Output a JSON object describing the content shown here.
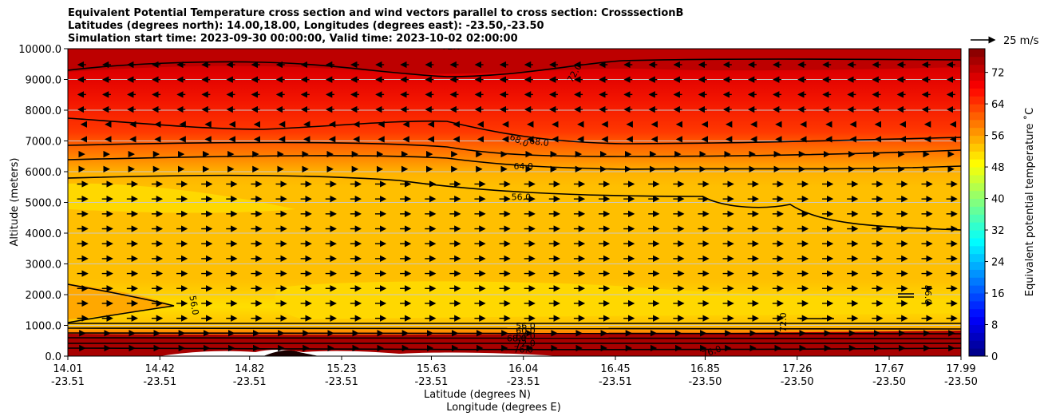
{
  "chart_data": {
    "type": "heatmap",
    "title_lines": [
      "Equivalent Potential Temperature cross section and wind vectors parallel to cross section: CrosssectionB",
      "Latitudes (degrees north): 14.00,18.00, Longitudes (degrees east): -23.50,-23.50",
      "Simulation start time: 2023-09-30 00:00:00, Valid time: 2023-10-02 02:00:00"
    ],
    "xlabel_lat": "Latitude (degrees N)",
    "xlabel_lon": "Longitude (degrees E)",
    "ylabel": "Altitude (meters)",
    "xlim": [
      14.01,
      17.99
    ],
    "ylim": [
      0,
      10000
    ],
    "x_ticks": [
      {
        "lat": "14.01",
        "lon": "-23.51",
        "value": 14.01
      },
      {
        "lat": "14.42",
        "lon": "-23.51",
        "value": 14.42
      },
      {
        "lat": "14.82",
        "lon": "-23.51",
        "value": 14.82
      },
      {
        "lat": "15.23",
        "lon": "-23.51",
        "value": 15.23
      },
      {
        "lat": "15.63",
        "lon": "-23.51",
        "value": 15.63
      },
      {
        "lat": "16.04",
        "lon": "-23.51",
        "value": 16.04
      },
      {
        "lat": "16.45",
        "lon": "-23.51",
        "value": 16.45
      },
      {
        "lat": "16.85",
        "lon": "-23.50",
        "value": 16.85
      },
      {
        "lat": "17.26",
        "lon": "-23.50",
        "value": 17.26
      },
      {
        "lat": "17.67",
        "lon": "-23.50",
        "value": 17.67
      },
      {
        "lat": "17.99",
        "lon": "-23.50",
        "value": 17.99
      }
    ],
    "y_ticks": [
      "0.0",
      "1000.0",
      "2000.0",
      "3000.0",
      "4000.0",
      "5000.0",
      "6000.0",
      "7000.0",
      "8000.0",
      "9000.0",
      "10000.0"
    ],
    "grid": "horizontal",
    "colorbar": {
      "label": "Equivalent potential temperature $^\\circ$C",
      "label_display": "Equivalent potential temperature ˚C",
      "min": 0,
      "max": 78,
      "step": 2,
      "ticks": [
        "0",
        "8",
        "16",
        "24",
        "32",
        "40",
        "48",
        "56",
        "64",
        "72"
      ],
      "colormap": "jet"
    },
    "quiver_key": {
      "label": "25 m/s",
      "value": 25
    },
    "contour_labels": [
      {
        "text": "72.0",
        "x": 16.27,
        "y": 9200,
        "rotate": -60
      },
      {
        "text": "72.0",
        "x": 15.72,
        "y": 10050,
        "rotate": 0
      },
      {
        "text": "68.0",
        "x": 16.02,
        "y": 7000,
        "rotate": 25
      },
      {
        "text": "68.0",
        "x": 16.11,
        "y": 6950,
        "rotate": 8
      },
      {
        "text": "64.0",
        "x": 16.04,
        "y": 6150,
        "rotate": 0
      },
      {
        "text": "56.0",
        "x": 16.03,
        "y": 5150,
        "rotate": 0
      },
      {
        "text": "56.0",
        "x": 14.57,
        "y": 1650,
        "rotate": 80
      },
      {
        "text": "56.0",
        "x": 17.84,
        "y": 2000,
        "rotate": 90
      },
      {
        "text": "72.0",
        "x": 17.2,
        "y": 1100,
        "rotate": -90
      },
      {
        "text": "56.0",
        "x": 16.05,
        "y": 960,
        "rotate": 0
      },
      {
        "text": "60.0",
        "x": 16.05,
        "y": 800,
        "rotate": 0
      },
      {
        "text": "64.0",
        "x": 16.05,
        "y": 640,
        "rotate": 0
      },
      {
        "text": "68.0",
        "x": 16.01,
        "y": 560,
        "rotate": 0
      },
      {
        "text": "72.0",
        "x": 16.05,
        "y": 400,
        "rotate": 0
      },
      {
        "text": "76.0",
        "x": 16.04,
        "y": 200,
        "rotate": 0
      },
      {
        "text": "76.0",
        "x": 16.88,
        "y": 130,
        "rotate": -20
      }
    ]
  }
}
